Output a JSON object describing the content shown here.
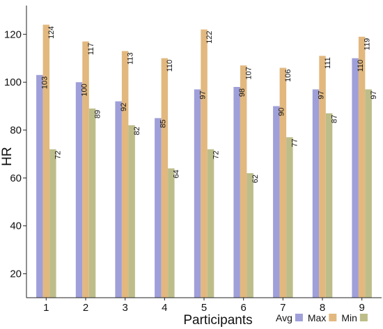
{
  "chart_data": {
    "type": "bar",
    "categories": [
      "1",
      "2",
      "3",
      "4",
      "5",
      "6",
      "7",
      "8",
      "9"
    ],
    "series": [
      {
        "name": "Avg",
        "values": [
          103,
          100,
          92,
          85,
          97,
          98,
          90,
          97,
          110
        ],
        "color": "#9f9fd9"
      },
      {
        "name": "Max",
        "values": [
          124,
          117,
          113,
          110,
          122,
          107,
          106,
          111,
          119
        ],
        "color": "#e2b87f"
      },
      {
        "name": "Min",
        "values": [
          72,
          89,
          82,
          64,
          72,
          62,
          77,
          87,
          97
        ],
        "color": "#bdbd8a"
      }
    ],
    "xlabel": "Participants",
    "ylabel": "HR",
    "ylim": [
      10,
      132
    ],
    "yticks": [
      20,
      40,
      60,
      80,
      100,
      120
    ],
    "grid": false,
    "legend_position": "bottom-right"
  }
}
